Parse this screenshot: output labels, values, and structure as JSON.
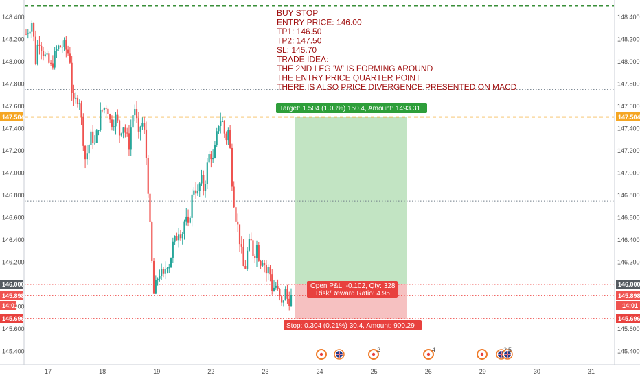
{
  "colors": {
    "background": "#ffffff",
    "up": "#26a69a",
    "down": "#ef5350",
    "target_zone": "#b7dfb9",
    "stop_zone": "#f5b6b6",
    "target_line": "#f5a623",
    "entry_line": "#ef5350",
    "top_line": "#3a8f3a",
    "annotation": "#a01010",
    "grid": "#dde3ea"
  },
  "note": {
    "lines": [
      "BUY STOP",
      "",
      "ENTRY PRICE: 146.00",
      "TP1: 146.50",
      "TP2: 147.50",
      "SL: 145.70",
      "",
      "TRADE IDEA:",
      "THE 2ND LEG 'W' IS FORMING AROUND",
      "THE ENTRY PRICE QUARTER POINT",
      "THERE IS ALSO PRICE DIVERGENCE PRESENTED ON MACD"
    ]
  },
  "position": {
    "target_label": "Target: 1.504 (1.03%) 150.4, Amount: 1493.31",
    "open_pnl_label": "Open P&L: -0.102, Qty: 328",
    "rr_label": "Risk/Reward Ratio: 4.95",
    "stop_label": "Stop: 0.304 (0.21%) 30.4, Amount: 900.29"
  },
  "price_tags": {
    "target": "147.504",
    "entry": "146.000",
    "last": "145.898",
    "countdown": "14:01",
    "stop": "145.696"
  },
  "events": [
    {
      "icon": "event-marker-icon",
      "badge": ""
    },
    {
      "icon": "uk-flag-icon",
      "badge": ""
    },
    {
      "icon": "event-marker-icon",
      "badge": "2"
    },
    {
      "icon": "event-marker-icon",
      "badge": "4"
    },
    {
      "icon": "event-marker-icon",
      "badge": ""
    },
    {
      "icon": "uk-flag-icon",
      "badge": "2"
    },
    {
      "icon": "uk-flag-icon",
      "badge": "5"
    }
  ],
  "chart_data": {
    "type": "candlestick",
    "y_ticks": [
      "148.400",
      "148.200",
      "148.000",
      "147.800",
      "147.600",
      "147.400",
      "147.200",
      "147.000",
      "146.800",
      "146.600",
      "146.400",
      "146.200",
      "146.000",
      "145.800",
      "145.600",
      "145.400"
    ],
    "x_ticks": [
      "17",
      "18",
      "19",
      "22",
      "23",
      "24",
      "25",
      "26",
      "29",
      "30",
      "31"
    ],
    "ylim": [
      145.32,
      148.48
    ],
    "grid": false,
    "horizontal_lines": [
      {
        "price": 148.5,
        "style": "dashed",
        "color": "#3a8f3a"
      },
      {
        "price": 147.75,
        "style": "dotted",
        "color": "#6e7b86"
      },
      {
        "price": 147.504,
        "style": "dashed",
        "color": "#f5a623"
      },
      {
        "price": 147.0,
        "style": "dotted",
        "color": "#2d7a74"
      },
      {
        "price": 146.75,
        "style": "dotted",
        "color": "#6e7b86"
      },
      {
        "price": 146.0,
        "style": "dotted",
        "color": "#ef5350"
      },
      {
        "price": 145.898,
        "style": "dotted",
        "color": "#ef5350"
      },
      {
        "price": 145.696,
        "style": "dotted",
        "color": "#ef5350"
      }
    ],
    "waypoints": [
      [
        0,
        148.25
      ],
      [
        2,
        148.37
      ],
      [
        3,
        148.0
      ],
      [
        4,
        148.22
      ],
      [
        6,
        148.05
      ],
      [
        8,
        147.95
      ],
      [
        10,
        148.12
      ],
      [
        12,
        148.15
      ],
      [
        14,
        148.05
      ],
      [
        15,
        147.6
      ],
      [
        17,
        147.7
      ],
      [
        18,
        147.4
      ],
      [
        19,
        147.12
      ],
      [
        21,
        147.35
      ],
      [
        22,
        147.25
      ],
      [
        24,
        147.55
      ],
      [
        26,
        147.62
      ],
      [
        27,
        147.45
      ],
      [
        29,
        147.5
      ],
      [
        30,
        147.35
      ],
      [
        31,
        147.45
      ],
      [
        33,
        147.25
      ],
      [
        34,
        147.5
      ],
      [
        35,
        147.6
      ],
      [
        36,
        147.3
      ],
      [
        37,
        147.48
      ],
      [
        38,
        147.35
      ],
      [
        39,
        146.95
      ],
      [
        40,
        146.35
      ],
      [
        41,
        145.9
      ],
      [
        42,
        146.05
      ],
      [
        43,
        146.12
      ],
      [
        44,
        146.05
      ],
      [
        45,
        146.2
      ],
      [
        46,
        146.18
      ],
      [
        47,
        146.35
      ],
      [
        48,
        146.4
      ],
      [
        49,
        146.5
      ],
      [
        50,
        146.45
      ],
      [
        51,
        146.6
      ],
      [
        52,
        146.5
      ],
      [
        53,
        146.75
      ],
      [
        54,
        146.9
      ],
      [
        55,
        146.8
      ],
      [
        56,
        146.95
      ],
      [
        57,
        146.85
      ],
      [
        58,
        147.05
      ],
      [
        59,
        147.2
      ],
      [
        60,
        147.1
      ],
      [
        61,
        147.3
      ],
      [
        62,
        147.5
      ],
      [
        63,
        147.45
      ],
      [
        64,
        147.3
      ],
      [
        65,
        147.4
      ],
      [
        66,
        146.95
      ],
      [
        67,
        146.65
      ],
      [
        68,
        146.5
      ],
      [
        69,
        146.3
      ],
      [
        70,
        146.1
      ],
      [
        71,
        146.3
      ],
      [
        72,
        146.4
      ],
      [
        73,
        146.25
      ],
      [
        74,
        146.35
      ],
      [
        75,
        146.2
      ],
      [
        76,
        146.25
      ],
      [
        77,
        146.1
      ],
      [
        78,
        146.15
      ],
      [
        79,
        145.95
      ],
      [
        80,
        146.0
      ],
      [
        81,
        145.9
      ],
      [
        82,
        145.8
      ],
      [
        83,
        145.95
      ],
      [
        84,
        145.85
      ],
      [
        85,
        145.88
      ]
    ]
  }
}
